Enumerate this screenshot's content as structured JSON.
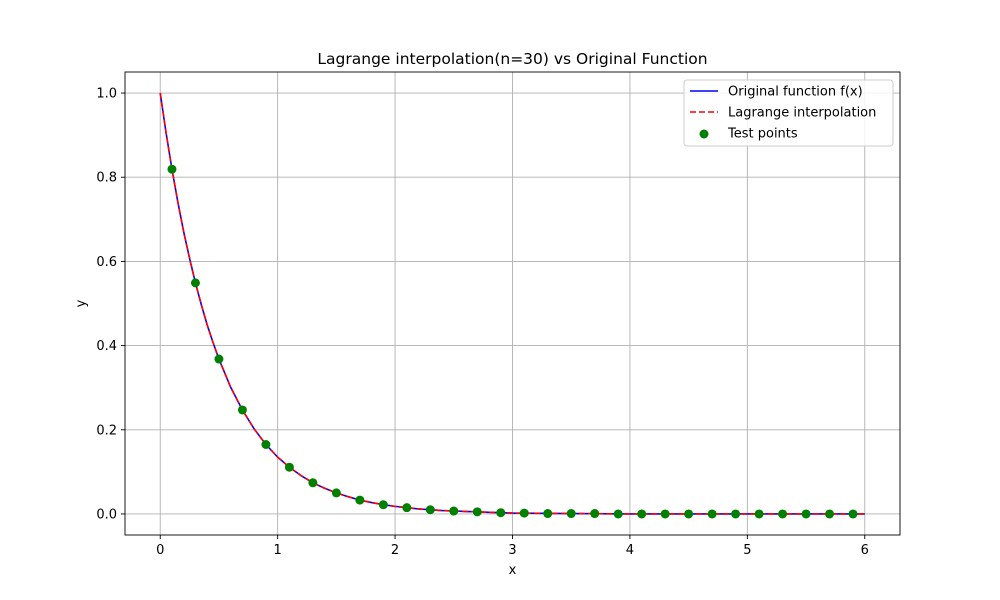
{
  "chart_data": {
    "type": "line",
    "title": "Lagrange interpolation(n=30) vs Original Function",
    "xlabel": "x",
    "ylabel": "y",
    "xlim": [
      -0.3,
      6.3
    ],
    "ylim": [
      -0.05,
      1.05
    ],
    "x_ticks": [
      0,
      1,
      2,
      3,
      4,
      5,
      6
    ],
    "x_tick_labels": [
      "0",
      "1",
      "2",
      "3",
      "4",
      "5",
      "6"
    ],
    "y_ticks": [
      0.0,
      0.2,
      0.4,
      0.6,
      0.8,
      1.0
    ],
    "y_tick_labels": [
      "0.0",
      "0.2",
      "0.4",
      "0.6",
      "0.8",
      "1.0"
    ],
    "grid": true,
    "legend_position": "top-right",
    "series": [
      {
        "name": "Original function f(x)",
        "kind": "line",
        "style": "solid",
        "color": "#0000ff",
        "x": [
          0,
          0.05,
          0.1,
          0.15,
          0.2,
          0.25,
          0.3,
          0.35,
          0.4,
          0.45,
          0.5,
          0.6,
          0.7,
          0.8,
          0.9,
          1.0,
          1.1,
          1.2,
          1.3,
          1.4,
          1.5,
          1.6,
          1.7,
          1.8,
          1.9,
          2.0,
          2.2,
          2.4,
          2.6,
          2.8,
          3.0,
          3.5,
          4.0,
          4.5,
          5.0,
          5.5,
          6.0
        ],
        "y": [
          1.0,
          0.905,
          0.819,
          0.741,
          0.67,
          0.607,
          0.549,
          0.497,
          0.449,
          0.407,
          0.368,
          0.301,
          0.247,
          0.202,
          0.165,
          0.135,
          0.111,
          0.091,
          0.074,
          0.061,
          0.05,
          0.041,
          0.033,
          0.027,
          0.022,
          0.018,
          0.012,
          0.008,
          0.006,
          0.004,
          0.002,
          0.001,
          0.0,
          0.0,
          0.0,
          0.0,
          0.0
        ]
      },
      {
        "name": "Lagrange interpolation",
        "kind": "line",
        "style": "dashed",
        "color": "#ff0000",
        "x": [
          0,
          0.05,
          0.1,
          0.15,
          0.2,
          0.25,
          0.3,
          0.35,
          0.4,
          0.45,
          0.5,
          0.6,
          0.7,
          0.8,
          0.9,
          1.0,
          1.1,
          1.2,
          1.3,
          1.4,
          1.5,
          1.6,
          1.7,
          1.8,
          1.9,
          2.0,
          2.2,
          2.4,
          2.6,
          2.8,
          3.0,
          3.5,
          4.0,
          4.5,
          5.0,
          5.5,
          6.0
        ],
        "y": [
          1.0,
          0.905,
          0.819,
          0.741,
          0.67,
          0.607,
          0.549,
          0.497,
          0.449,
          0.407,
          0.368,
          0.301,
          0.247,
          0.202,
          0.165,
          0.135,
          0.111,
          0.091,
          0.074,
          0.061,
          0.05,
          0.041,
          0.033,
          0.027,
          0.022,
          0.018,
          0.012,
          0.008,
          0.006,
          0.004,
          0.002,
          0.001,
          0.0,
          0.0,
          0.0,
          0.0,
          0.0
        ]
      },
      {
        "name": "Test points",
        "kind": "scatter",
        "color": "#008000",
        "x": [
          0.1,
          0.3,
          0.5,
          0.7,
          0.9,
          1.1,
          1.3,
          1.5,
          1.7,
          1.9,
          2.1,
          2.3,
          2.5,
          2.7,
          2.9,
          3.1,
          3.3,
          3.5,
          3.7,
          3.9,
          4.1,
          4.3,
          4.5,
          4.7,
          4.9,
          5.1,
          5.3,
          5.5,
          5.7,
          5.9
        ],
        "y": [
          0.819,
          0.549,
          0.368,
          0.247,
          0.165,
          0.111,
          0.074,
          0.05,
          0.033,
          0.022,
          0.015,
          0.01,
          0.007,
          0.005,
          0.003,
          0.002,
          0.001,
          0.001,
          0.001,
          0.0,
          0.0,
          0.0,
          0.0,
          0.0,
          0.0,
          0.0,
          0.0,
          0.0,
          0.0,
          0.0
        ]
      }
    ]
  }
}
